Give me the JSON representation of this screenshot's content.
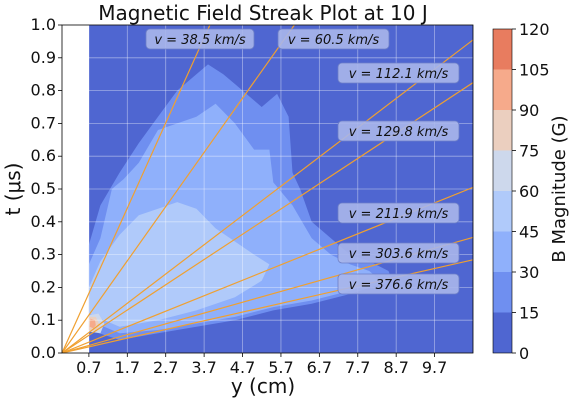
{
  "chart_data": {
    "type": "heatmap",
    "title": "Magnetic Field Streak Plot at 10 J",
    "xlabel": "y (cm)",
    "ylabel": "t (μs)",
    "xlim": [
      0,
      10.7
    ],
    "ylim": [
      0,
      1.0
    ],
    "x_ticks": [
      "0.7",
      "1.7",
      "2.7",
      "3.7",
      "4.7",
      "5.7",
      "6.7",
      "7.7",
      "8.7",
      "9.7"
    ],
    "x_tick_values": [
      0.7,
      1.7,
      2.7,
      3.7,
      4.7,
      5.7,
      6.7,
      7.7,
      8.7,
      9.7
    ],
    "y_ticks": [
      "0.0",
      "0.1",
      "0.2",
      "0.3",
      "0.4",
      "0.5",
      "0.6",
      "0.7",
      "0.8",
      "0.9",
      "1.0"
    ],
    "y_tick_values": [
      0,
      0.1,
      0.2,
      0.3,
      0.4,
      0.5,
      0.6,
      0.7,
      0.8,
      0.9,
      1.0
    ],
    "grid": true,
    "data_x_start": 0.7,
    "colorbar": {
      "label": "B Magnitude (G)",
      "ticks": [
        "0",
        "15",
        "30",
        "45",
        "60",
        "75",
        "90",
        "105",
        "120"
      ],
      "tick_values": [
        0,
        15,
        30,
        45,
        60,
        75,
        90,
        105,
        120
      ],
      "level_colors": [
        "#4f66d1",
        "#6f8ff0",
        "#8fb0fb",
        "#b0cafa",
        "#cdd8ec",
        "#ebcfbf",
        "#f6aa8b",
        "#e87c5f",
        "#c9403a"
      ]
    },
    "contour_regions": [
      {
        "level": 15,
        "points": [
          [
            0.7,
            0.07
          ],
          [
            0.7,
            0.33
          ],
          [
            1.0,
            0.45
          ],
          [
            1.5,
            0.55
          ],
          [
            2.0,
            0.64
          ],
          [
            2.5,
            0.72
          ],
          [
            3.0,
            0.8
          ],
          [
            3.5,
            0.85
          ],
          [
            3.8,
            0.88
          ],
          [
            4.2,
            0.85
          ],
          [
            4.5,
            0.82
          ],
          [
            4.8,
            0.79
          ],
          [
            5.2,
            0.75
          ],
          [
            5.6,
            0.79
          ],
          [
            5.9,
            0.72
          ],
          [
            6.0,
            0.55
          ],
          [
            6.2,
            0.5
          ],
          [
            6.5,
            0.4
          ],
          [
            7.0,
            0.35
          ],
          [
            7.5,
            0.3
          ],
          [
            8.0,
            0.28
          ],
          [
            8.5,
            0.25
          ],
          [
            8.6,
            0.22
          ],
          [
            8.3,
            0.21
          ],
          [
            7.5,
            0.18
          ],
          [
            6.5,
            0.15
          ],
          [
            5.5,
            0.13
          ],
          [
            4.5,
            0.1
          ],
          [
            3.5,
            0.08
          ],
          [
            2.5,
            0.06
          ],
          [
            1.5,
            0.04
          ]
        ]
      },
      {
        "level": 30,
        "points": [
          [
            0.7,
            0.1
          ],
          [
            0.7,
            0.27
          ],
          [
            1.0,
            0.35
          ],
          [
            1.3,
            0.5
          ],
          [
            1.6,
            0.53
          ],
          [
            2.0,
            0.58
          ],
          [
            2.5,
            0.68
          ],
          [
            3.0,
            0.7
          ],
          [
            3.5,
            0.72
          ],
          [
            4.0,
            0.76
          ],
          [
            4.5,
            0.7
          ],
          [
            5.0,
            0.62
          ],
          [
            5.4,
            0.62
          ],
          [
            5.5,
            0.52
          ],
          [
            6.0,
            0.45
          ],
          [
            6.5,
            0.35
          ],
          [
            7.0,
            0.3
          ],
          [
            7.5,
            0.27
          ],
          [
            8.0,
            0.25
          ],
          [
            8.3,
            0.22
          ],
          [
            7.5,
            0.19
          ],
          [
            6.5,
            0.16
          ],
          [
            5.5,
            0.14
          ],
          [
            4.5,
            0.11
          ],
          [
            3.5,
            0.09
          ],
          [
            2.5,
            0.07
          ],
          [
            1.5,
            0.06
          ]
        ]
      },
      {
        "level": 45,
        "points": [
          [
            0.7,
            0.12
          ],
          [
            0.7,
            0.2
          ],
          [
            1.0,
            0.28
          ],
          [
            1.5,
            0.36
          ],
          [
            2.0,
            0.42
          ],
          [
            2.5,
            0.44
          ],
          [
            3.0,
            0.46
          ],
          [
            3.5,
            0.44
          ],
          [
            4.0,
            0.38
          ],
          [
            4.5,
            0.34
          ],
          [
            5.0,
            0.3
          ],
          [
            5.4,
            0.27
          ],
          [
            5.2,
            0.22
          ],
          [
            4.5,
            0.17
          ],
          [
            3.5,
            0.13
          ],
          [
            2.5,
            0.1
          ],
          [
            1.5,
            0.08
          ]
        ]
      },
      {
        "level": 60,
        "points": [
          [
            0.7,
            0.065
          ],
          [
            0.7,
            0.115
          ],
          [
            0.95,
            0.12
          ],
          [
            1.1,
            0.09
          ],
          [
            1.0,
            0.06
          ]
        ]
      },
      {
        "level": 75,
        "points": [
          [
            0.7,
            0.07
          ],
          [
            0.7,
            0.11
          ],
          [
            0.88,
            0.11
          ],
          [
            0.98,
            0.085
          ],
          [
            0.9,
            0.065
          ]
        ]
      },
      {
        "level": 90,
        "points": [
          [
            0.72,
            0.08
          ],
          [
            0.74,
            0.105
          ],
          [
            0.86,
            0.1
          ],
          [
            0.88,
            0.085
          ],
          [
            0.82,
            0.075
          ]
        ]
      }
    ],
    "velocity_lines": [
      {
        "label": "v = 38.5 km/s",
        "v_km_s": 38.5
      },
      {
        "label": "v = 60.5 km/s",
        "v_km_s": 60.5
      },
      {
        "label": "v = 112.1 km/s",
        "v_km_s": 112.1
      },
      {
        "label": "v = 129.8 km/s",
        "v_km_s": 129.8
      },
      {
        "label": "v = 211.9 km/s",
        "v_km_s": 211.9
      },
      {
        "label": "v = 303.6 km/s",
        "v_km_s": 303.6
      },
      {
        "label": "v = 376.6 km/s",
        "v_km_s": 376.6
      }
    ],
    "line_color": "#f0a030"
  }
}
